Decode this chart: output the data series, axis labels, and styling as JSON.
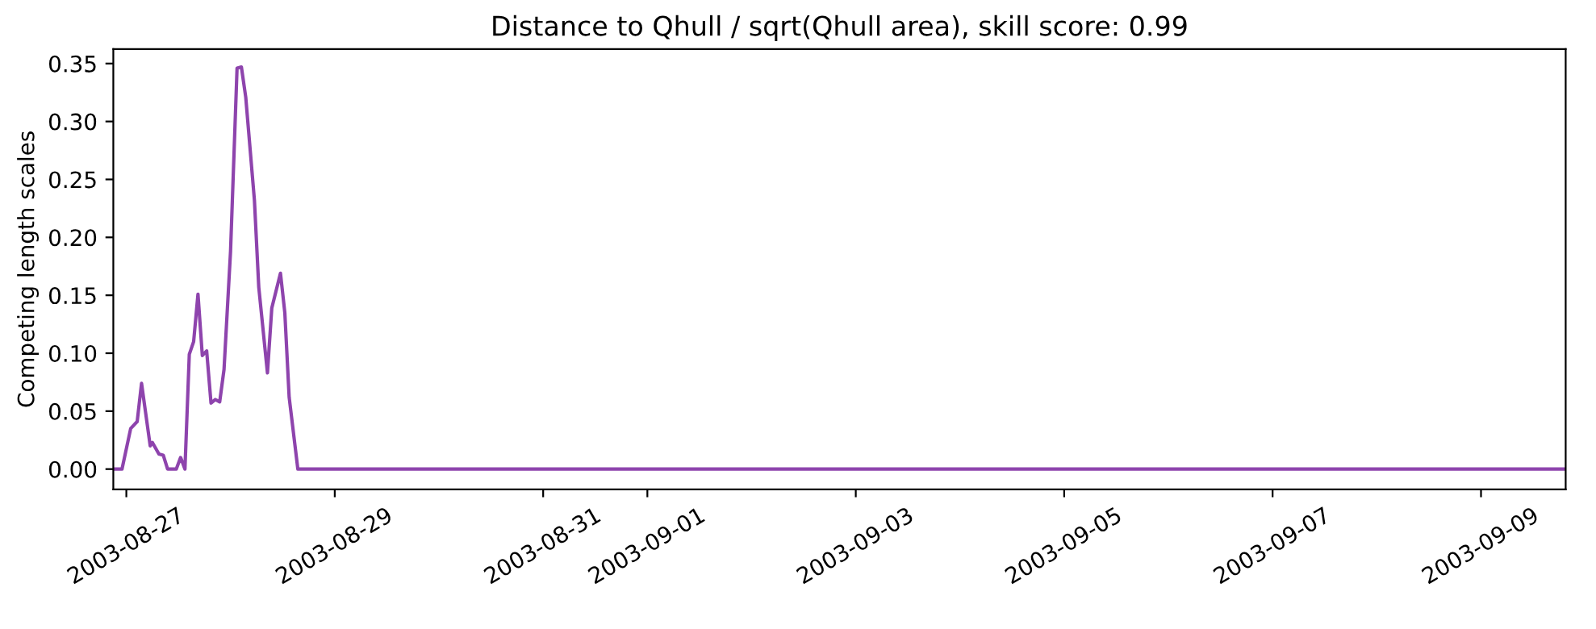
{
  "chart_data": {
    "type": "line",
    "title": "Distance to Qhull / sqrt(Qhull area), skill score: 0.99",
    "ylabel": "Competing length scales",
    "x": [
      "2003-08-26T21:30",
      "2003-08-26T23:00",
      "2003-08-27T01:00",
      "2003-08-27T02:30",
      "2003-08-27T03:30",
      "2003-08-27T05:30",
      "2003-08-27T06:00",
      "2003-08-27T07:30",
      "2003-08-27T08:30",
      "2003-08-27T09:30",
      "2003-08-27T11:30",
      "2003-08-27T12:30",
      "2003-08-27T13:30",
      "2003-08-27T14:30",
      "2003-08-27T15:30",
      "2003-08-27T16:30",
      "2003-08-27T17:30",
      "2003-08-27T18:30",
      "2003-08-27T19:30",
      "2003-08-27T20:30",
      "2003-08-27T21:30",
      "2003-08-27T22:30",
      "2003-08-28T00:00",
      "2003-08-28T01:30",
      "2003-08-28T02:30",
      "2003-08-28T03:30",
      "2003-08-28T05:30",
      "2003-08-28T06:30",
      "2003-08-28T08:30",
      "2003-08-28T09:30",
      "2003-08-28T11:30",
      "2003-08-28T12:30",
      "2003-08-28T13:30",
      "2003-08-28T15:30",
      "2003-09-09T19:30"
    ],
    "series": [
      {
        "color": "#8e44ad",
        "values": [
          0,
          0,
          0.035,
          0.041,
          0.074,
          0.02,
          0.023,
          0.013,
          0.012,
          0,
          0,
          0.01,
          0,
          0.099,
          0.11,
          0.151,
          0.098,
          0.102,
          0.057,
          0.06,
          0.058,
          0.086,
          0.188,
          0.346,
          0.347,
          0.321,
          0.232,
          0.157,
          0.083,
          0.139,
          0.169,
          0.135,
          0.062,
          0,
          0
        ]
      }
    ],
    "xlim": [
      "2003-08-26T21:00",
      "2003-09-09T19:30"
    ],
    "xticks": [
      {
        "value": "2003-08-27",
        "label": "2003-08-27"
      },
      {
        "value": "2003-08-29",
        "label": "2003-08-29"
      },
      {
        "value": "2003-08-31",
        "label": "2003-08-31"
      },
      {
        "value": "2003-09-01",
        "label": "2003-09-01"
      },
      {
        "value": "2003-09-03",
        "label": "2003-09-03"
      },
      {
        "value": "2003-09-05",
        "label": "2003-09-05"
      },
      {
        "value": "2003-09-07",
        "label": "2003-09-07"
      },
      {
        "value": "2003-09-09",
        "label": "2003-09-09"
      }
    ],
    "ylim": [
      -0.0175,
      0.3625
    ],
    "yticks": [
      {
        "value": 0,
        "label": "0.00"
      },
      {
        "value": 0.05,
        "label": "0.05"
      },
      {
        "value": 0.1,
        "label": "0.10"
      },
      {
        "value": 0.15,
        "label": "0.15"
      },
      {
        "value": 0.2,
        "label": "0.20"
      },
      {
        "value": 0.25,
        "label": "0.25"
      },
      {
        "value": 0.3,
        "label": "0.30"
      },
      {
        "value": 0.35,
        "label": "0.35"
      }
    ],
    "grid": false,
    "legend": false
  }
}
